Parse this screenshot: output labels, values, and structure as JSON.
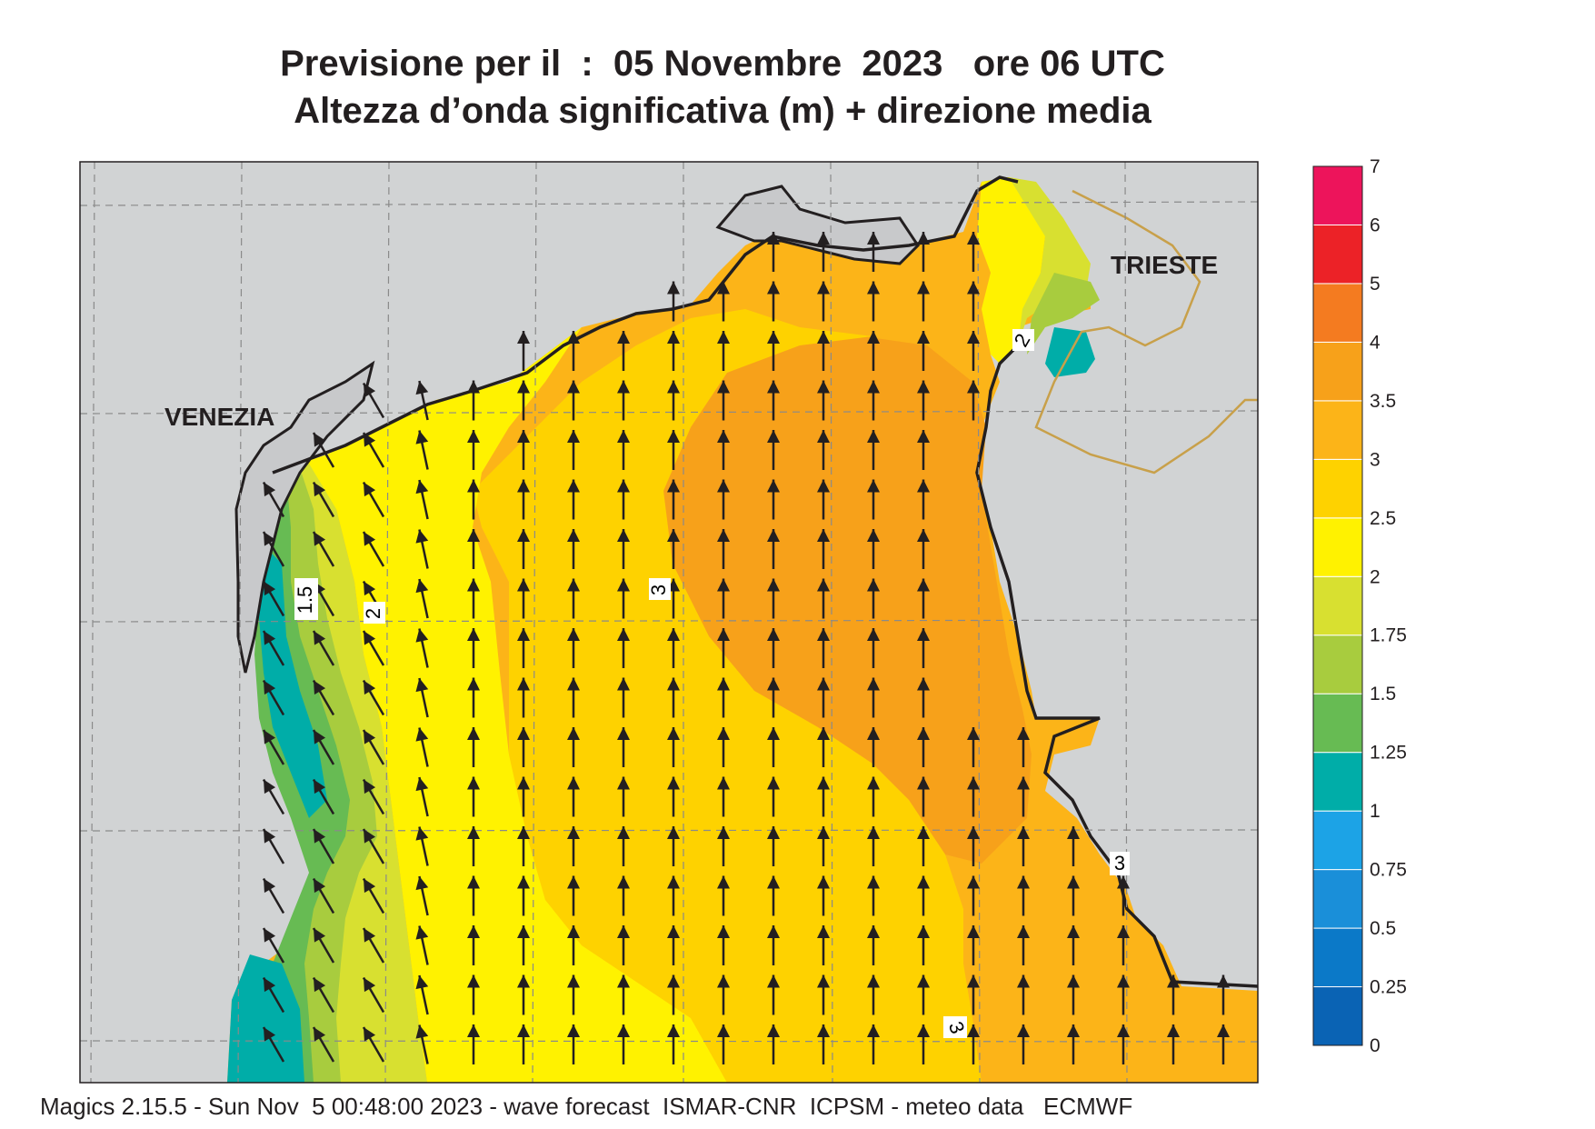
{
  "title": {
    "line1": "Previsione per il  :  05 Novembre  2023   ore 06 UTC",
    "line2": "Altezza d’onda significativa (m) + direzione media"
  },
  "places": {
    "venezia": "VENEZIA",
    "trieste": "TRIESTE"
  },
  "contour_labels": [
    "1.5",
    "2",
    "3",
    "3",
    "3",
    "2"
  ],
  "legend": {
    "levels": [
      "0",
      "0.25",
      "0.5",
      "0.75",
      "1",
      "1.25",
      "1.5",
      "1.75",
      "2",
      "2.5",
      "3",
      "3.5",
      "4",
      "5",
      "6",
      "7"
    ],
    "colors": [
      "#0a63b4",
      "#0b79c8",
      "#1a8fd9",
      "#1ca3e6",
      "#00ada8",
      "#67bb53",
      "#a8cc3e",
      "#d8e030",
      "#fff200",
      "#fed200",
      "#fcb418",
      "#f7a11a",
      "#f47b20",
      "#ec2227",
      "#ed145b"
    ]
  },
  "colors": {
    "land": "#d1d3d4",
    "coast": "#231f20",
    "border": "#c8a04a",
    "grid": "#8a8a8a",
    "arrow": "#231f20"
  },
  "footer": "Magics 2.15.5 - Sun Nov  5 00:48:00 2023 - wave forecast  ISMAR-CNR  ICPSM - meteo data   ECMWF"
}
